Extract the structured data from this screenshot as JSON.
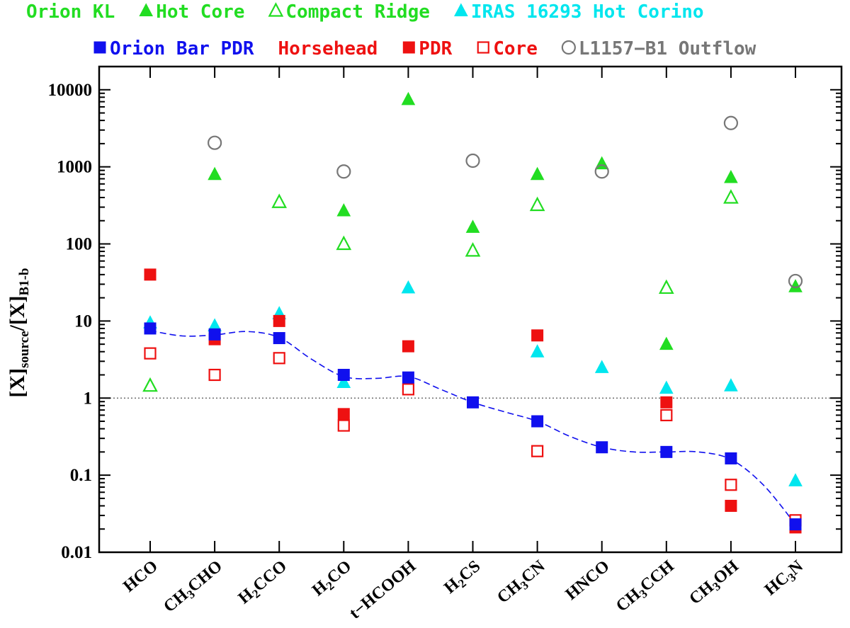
{
  "chart_data": {
    "type": "scatter",
    "title": "",
    "xlabel": "",
    "ylabel_main": "[X]",
    "ylabel_sub1": "source",
    "ylabel_mid": "/[X]",
    "ylabel_sub2": "B1-b",
    "yscale": "log",
    "ylim": [
      0.01,
      20000
    ],
    "y_ticks": [
      {
        "value": 0.01,
        "label": "0.01"
      },
      {
        "value": 0.1,
        "label": "0.1"
      },
      {
        "value": 1,
        "label": "1"
      },
      {
        "value": 10,
        "label": "10"
      },
      {
        "value": 100,
        "label": "100"
      },
      {
        "value": 1000,
        "label": "1000"
      },
      {
        "value": 10000,
        "label": "10000"
      }
    ],
    "reference_line": 1,
    "categories": [
      {
        "base": "HCO"
      },
      {
        "parts": [
          [
            "CH",
            ""
          ],
          [
            "3",
            "sub"
          ],
          [
            "CHO",
            ""
          ]
        ]
      },
      {
        "parts": [
          [
            "H",
            ""
          ],
          [
            "2",
            "sub"
          ],
          [
            "CCO",
            ""
          ]
        ]
      },
      {
        "parts": [
          [
            "H",
            ""
          ],
          [
            "2",
            "sub"
          ],
          [
            "CO",
            ""
          ]
        ]
      },
      {
        "base": "t−HCOOH"
      },
      {
        "parts": [
          [
            "H",
            ""
          ],
          [
            "2",
            "sub"
          ],
          [
            "CS",
            ""
          ]
        ]
      },
      {
        "parts": [
          [
            "CH",
            ""
          ],
          [
            "3",
            "sub"
          ],
          [
            "CN",
            ""
          ]
        ]
      },
      {
        "base": "HNCO"
      },
      {
        "parts": [
          [
            "CH",
            ""
          ],
          [
            "3",
            "sub"
          ],
          [
            "CCH",
            ""
          ]
        ]
      },
      {
        "parts": [
          [
            "CH",
            ""
          ],
          [
            "3",
            "sub"
          ],
          [
            "OH",
            ""
          ]
        ]
      },
      {
        "parts": [
          [
            "HC",
            ""
          ],
          [
            "3",
            "sub"
          ],
          [
            "N",
            ""
          ]
        ]
      }
    ],
    "category_names": [
      "HCO",
      "CH3CHO",
      "H2CCO",
      "H2CO",
      "t−HCOOH",
      "H2CS",
      "CH3CN",
      "HNCO",
      "CH3CCH",
      "CH3OH",
      "HC3N"
    ],
    "legend_rows": [
      [
        {
          "label": "Orion KL",
          "marker": "none",
          "color": "#22dd22"
        },
        {
          "label": "Hot Core",
          "marker": "triangle-filled",
          "color": "#22dd22"
        },
        {
          "label": "Compact Ridge",
          "marker": "triangle-open",
          "color": "#22dd22"
        },
        {
          "label": "IRAS 16293 Hot Corino",
          "marker": "triangle-filled",
          "color": "#00e6ee"
        }
      ],
      [
        {
          "label": "Orion Bar PDR",
          "marker": "square-filled",
          "color": "#1010ee"
        },
        {
          "label": "Horsehead",
          "marker": "none",
          "color": "#ee1111"
        },
        {
          "label": "PDR",
          "marker": "square-filled",
          "color": "#ee1111"
        },
        {
          "label": "Core",
          "marker": "square-open",
          "color": "#ee1111"
        },
        {
          "label": "L1157−B1 Outflow",
          "marker": "circle-open",
          "color": "#777777"
        }
      ]
    ],
    "series": [
      {
        "name": "Orion KL Hot Core",
        "marker": "triangle-filled",
        "color": "#22dd22",
        "points": [
          [
            1,
            800
          ],
          [
            3,
            270
          ],
          [
            4,
            7500
          ],
          [
            5,
            165
          ],
          [
            6,
            800
          ],
          [
            7,
            1100
          ],
          [
            8,
            5
          ],
          [
            9,
            730
          ],
          [
            10,
            28
          ]
        ]
      },
      {
        "name": "Orion KL Compact Ridge",
        "marker": "triangle-open",
        "color": "#22dd22",
        "points": [
          [
            0,
            1.45
          ],
          [
            2,
            350
          ],
          [
            3,
            100
          ],
          [
            5,
            82
          ],
          [
            6,
            320
          ],
          [
            8,
            27
          ],
          [
            9,
            400
          ]
        ]
      },
      {
        "name": "IRAS 16293 Hot Corino",
        "marker": "triangle-filled",
        "color": "#00e6ee",
        "points": [
          [
            0,
            9.5
          ],
          [
            1,
            8.7
          ],
          [
            2,
            12.5
          ],
          [
            3,
            1.6
          ],
          [
            4,
            27
          ],
          [
            6,
            4
          ],
          [
            7,
            2.5
          ],
          [
            8,
            1.35
          ],
          [
            9,
            1.45
          ],
          [
            10,
            0.085
          ]
        ]
      },
      {
        "name": "Horsehead PDR",
        "marker": "square-filled",
        "color": "#ee1111",
        "points": [
          [
            0,
            40
          ],
          [
            1,
            5.8
          ],
          [
            2,
            10
          ],
          [
            3,
            0.62
          ],
          [
            4,
            4.7
          ],
          [
            6,
            6.5
          ],
          [
            8,
            0.88
          ],
          [
            9,
            0.04
          ],
          [
            10,
            0.021
          ]
        ]
      },
      {
        "name": "Horsehead Core",
        "marker": "square-open",
        "color": "#ee1111",
        "points": [
          [
            0,
            3.8
          ],
          [
            1,
            2
          ],
          [
            2,
            3.3
          ],
          [
            3,
            0.44
          ],
          [
            4,
            1.3
          ],
          [
            6,
            0.205
          ],
          [
            8,
            0.6
          ],
          [
            9,
            0.075
          ],
          [
            10,
            0.026
          ]
        ]
      },
      {
        "name": "Orion Bar PDR",
        "marker": "square-filled",
        "color": "#1010ee",
        "points": [
          [
            0,
            8
          ],
          [
            1,
            6.7
          ],
          [
            2,
            6
          ],
          [
            3,
            2
          ],
          [
            4,
            1.85
          ],
          [
            5,
            0.88
          ],
          [
            6,
            0.5
          ],
          [
            7,
            0.23
          ],
          [
            8,
            0.2
          ],
          [
            9,
            0.165
          ],
          [
            10,
            0.023
          ]
        ]
      },
      {
        "name": "L1157-B1 Outflow",
        "marker": "circle-open",
        "color": "#777777",
        "points": [
          [
            1,
            2050
          ],
          [
            3,
            870
          ],
          [
            5,
            1200
          ],
          [
            7,
            870
          ],
          [
            9,
            3700
          ],
          [
            10,
            33
          ]
        ]
      }
    ],
    "trend_line": {
      "name": "Orion Bar PDR fit",
      "color": "#1010ee",
      "style": "dashed",
      "points": [
        [
          0,
          7.5
        ],
        [
          0.5,
          6.4
        ],
        [
          1,
          6.6
        ],
        [
          1.5,
          7.3
        ],
        [
          2,
          6.1
        ],
        [
          2.5,
          3.2
        ],
        [
          3,
          1.9
        ],
        [
          3.5,
          1.8
        ],
        [
          4,
          1.9
        ],
        [
          4.5,
          1.3
        ],
        [
          5,
          0.88
        ],
        [
          5.5,
          0.66
        ],
        [
          6,
          0.5
        ],
        [
          6.5,
          0.32
        ],
        [
          7,
          0.23
        ],
        [
          7.5,
          0.2
        ],
        [
          8,
          0.2
        ],
        [
          8.5,
          0.2
        ],
        [
          9,
          0.16
        ],
        [
          9.5,
          0.075
        ],
        [
          10,
          0.023
        ]
      ]
    }
  }
}
